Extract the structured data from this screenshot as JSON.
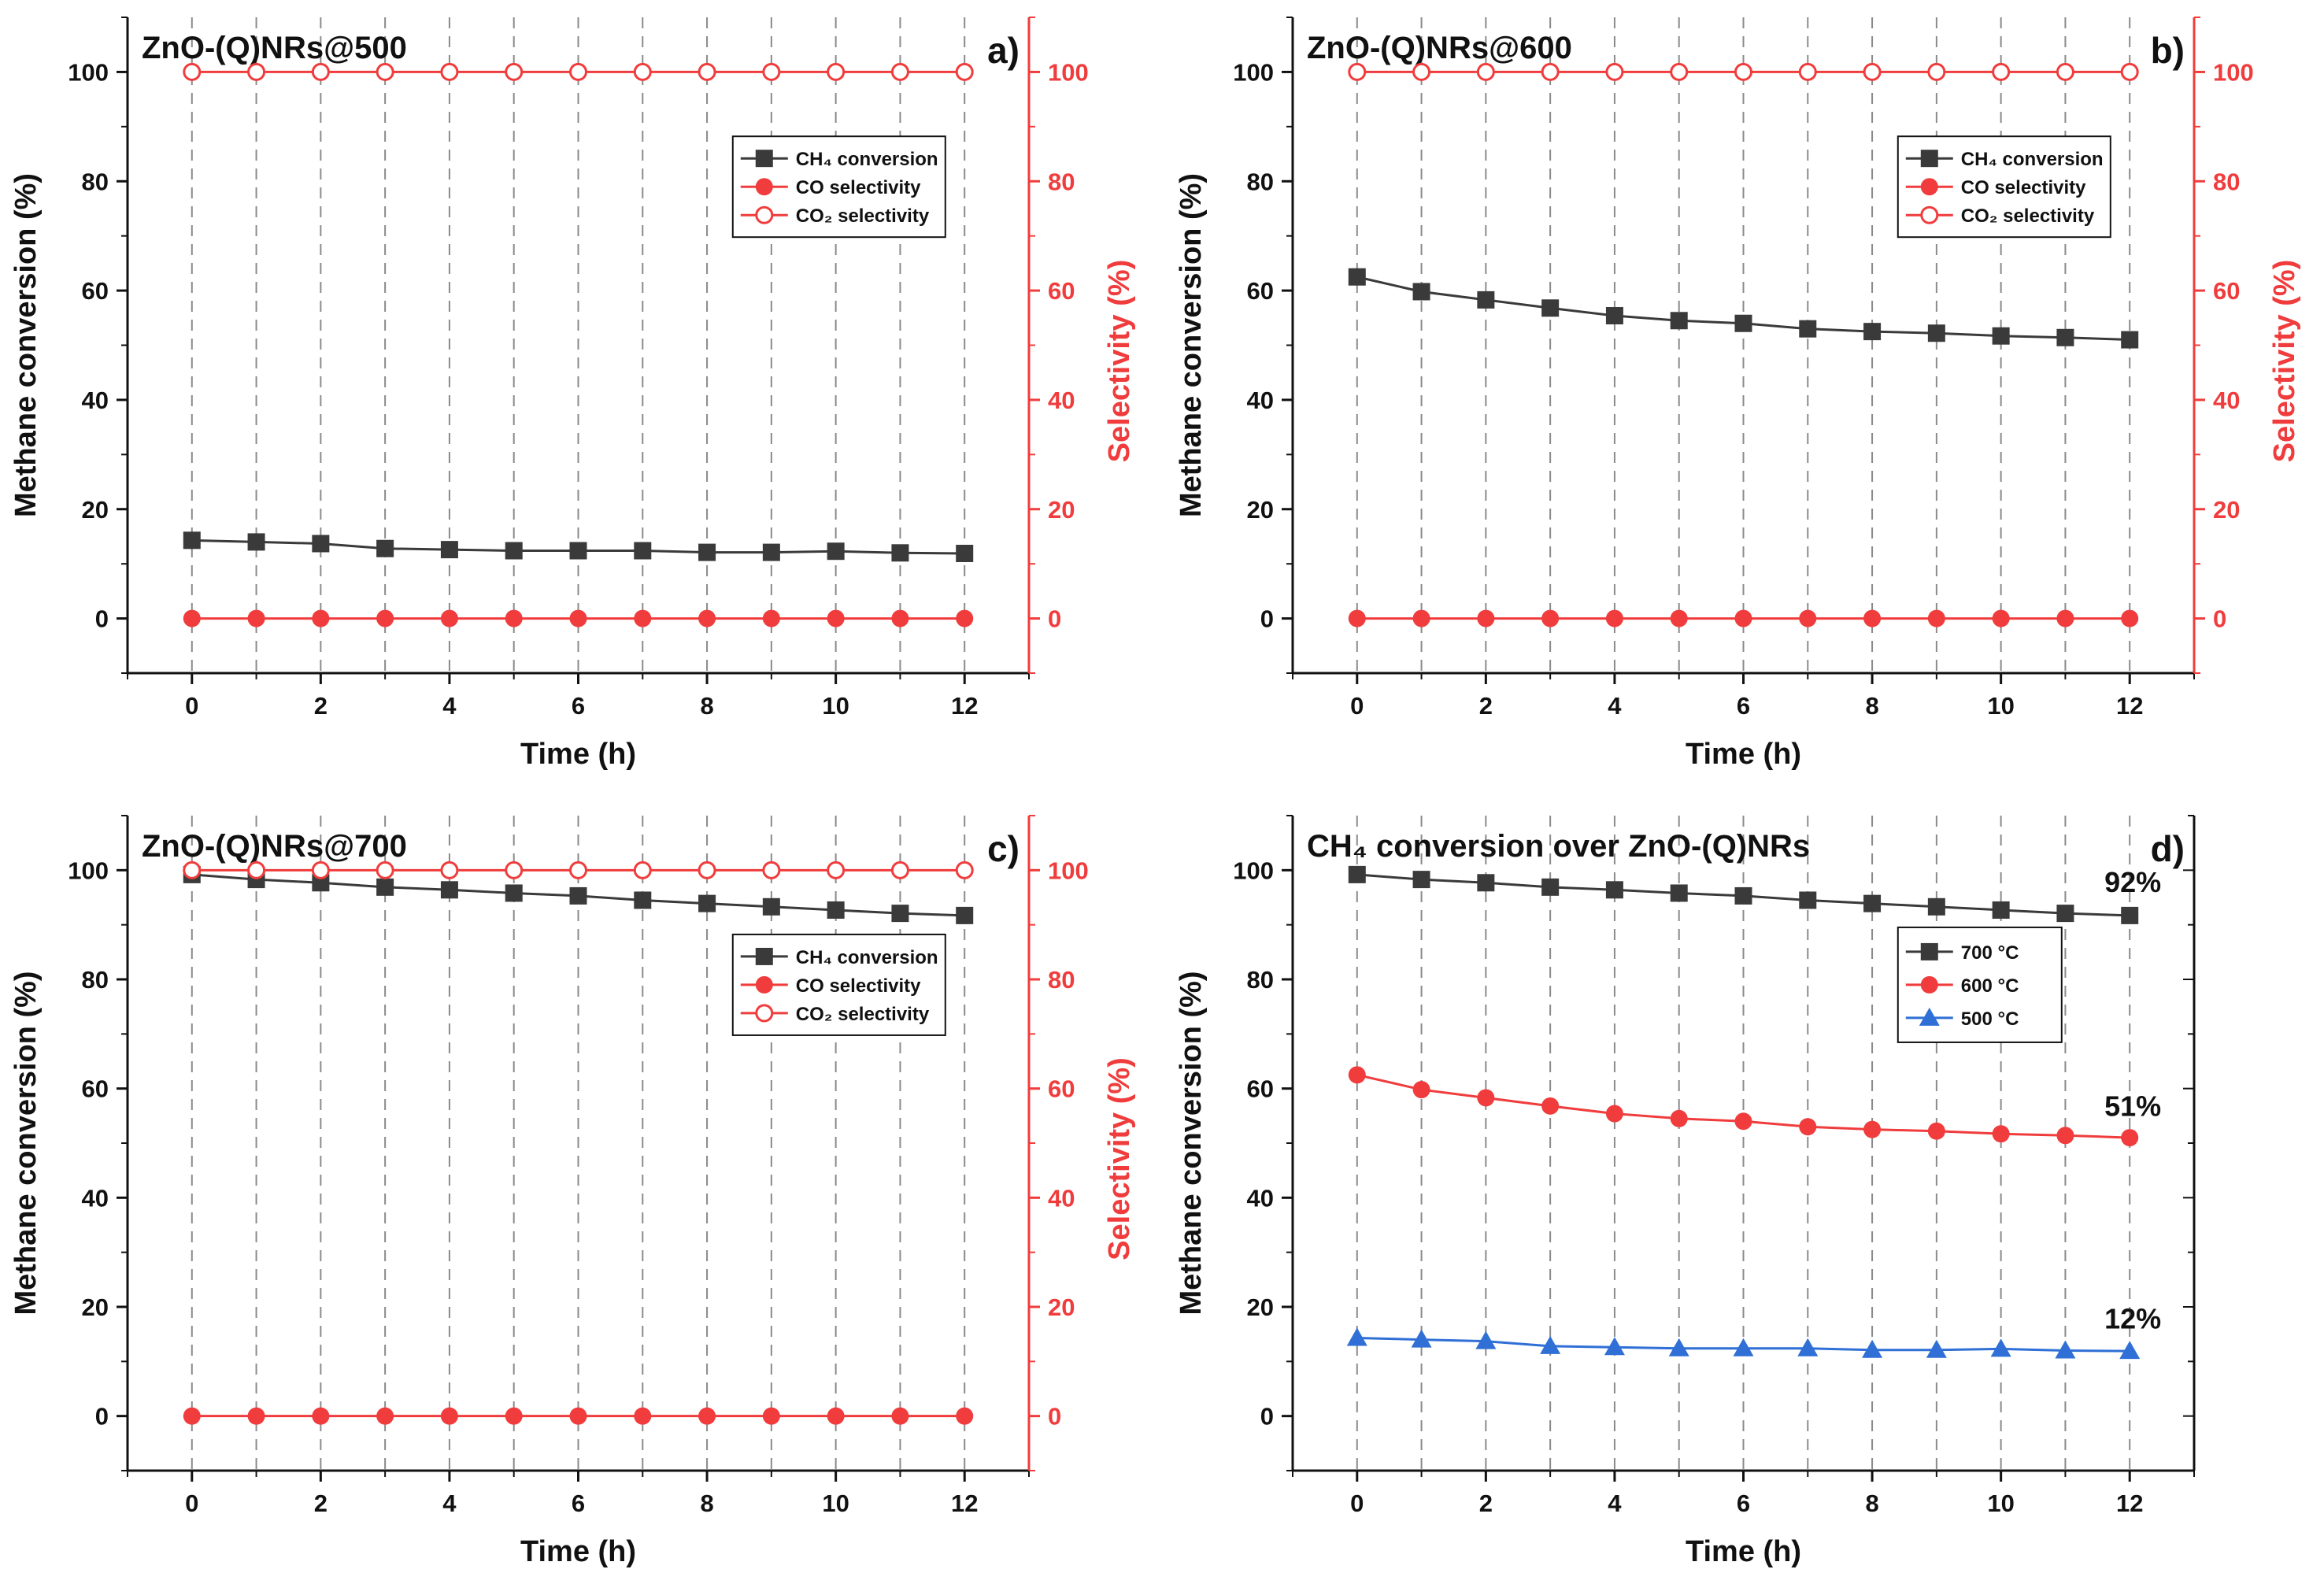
{
  "colors": {
    "black_series": "#3a3a3a",
    "red_series": "#f03c3c",
    "blue_series": "#2f6fd6",
    "right_axis": "#f03c3c",
    "grid": "#8a8a8a"
  },
  "chart_data": [
    {
      "id": "a",
      "type": "line",
      "panel_label": "a)",
      "title": "ZnO-(Q)NRs@500",
      "xlabel": "Time (h)",
      "ylabel": "Methane conversion (%)",
      "y2label": "Selectivity (%)",
      "xlim": [
        -1,
        13
      ],
      "ylim": [
        -10,
        110
      ],
      "xticks": [
        "0",
        "2",
        "4",
        "6",
        "8",
        "10",
        "12"
      ],
      "yticks": [
        "0",
        "20",
        "40",
        "60",
        "80",
        "100"
      ],
      "y2ticks": [
        "0",
        "20",
        "40",
        "60",
        "80",
        "100"
      ],
      "x": [
        0,
        1,
        2,
        3,
        4,
        5,
        6,
        7,
        8,
        9,
        10,
        11,
        12
      ],
      "legend_position": "center-right",
      "series": [
        {
          "name": "CH₄ conversion",
          "marker": "square",
          "color": "black_series",
          "axis": "left",
          "values": [
            14.3,
            14.0,
            13.7,
            12.8,
            12.6,
            12.4,
            12.4,
            12.4,
            12.1,
            12.1,
            12.3,
            12.0,
            11.9
          ]
        },
        {
          "name": "CO selectivity",
          "marker": "circle",
          "color": "red_series",
          "axis": "right",
          "values": [
            0,
            0,
            0,
            0,
            0,
            0,
            0,
            0,
            0,
            0,
            0,
            0,
            0
          ]
        },
        {
          "name": "CO₂ selectivity",
          "marker": "circle-open",
          "color": "red_series",
          "axis": "right",
          "values": [
            100,
            100,
            100,
            100,
            100,
            100,
            100,
            100,
            100,
            100,
            100,
            100,
            100
          ]
        }
      ]
    },
    {
      "id": "b",
      "type": "line",
      "panel_label": "b)",
      "title": "ZnO-(Q)NRs@600",
      "xlabel": "Time (h)",
      "ylabel": "Methane conversion (%)",
      "y2label": "Selectivity (%)",
      "xlim": [
        -1,
        13
      ],
      "ylim": [
        -10,
        110
      ],
      "xticks": [
        "0",
        "2",
        "4",
        "6",
        "8",
        "10",
        "12"
      ],
      "yticks": [
        "0",
        "20",
        "40",
        "60",
        "80",
        "100"
      ],
      "y2ticks": [
        "0",
        "20",
        "40",
        "60",
        "80",
        "100"
      ],
      "x": [
        0,
        1,
        2,
        3,
        4,
        5,
        6,
        7,
        8,
        9,
        10,
        11,
        12
      ],
      "legend_position": "center-right",
      "series": [
        {
          "name": "CH₄ conversion",
          "marker": "square",
          "color": "black_series",
          "axis": "left",
          "values": [
            62.5,
            59.8,
            58.3,
            56.8,
            55.4,
            54.5,
            54.0,
            53.0,
            52.5,
            52.2,
            51.7,
            51.4,
            51.0
          ]
        },
        {
          "name": "CO selectivity",
          "marker": "circle",
          "color": "red_series",
          "axis": "right",
          "values": [
            0,
            0,
            0,
            0,
            0,
            0,
            0,
            0,
            0,
            0,
            0,
            0,
            0
          ]
        },
        {
          "name": "CO₂ selectivity",
          "marker": "circle-open",
          "color": "red_series",
          "axis": "right",
          "values": [
            100,
            100,
            100,
            100,
            100,
            100,
            100,
            100,
            100,
            100,
            100,
            100,
            100
          ]
        }
      ]
    },
    {
      "id": "c",
      "type": "line",
      "panel_label": "c)",
      "title": "ZnO-(Q)NRs@700",
      "xlabel": "Time (h)",
      "ylabel": "Methane conversion (%)",
      "y2label": "Selectivity (%)",
      "xlim": [
        -1,
        13
      ],
      "ylim": [
        -10,
        110
      ],
      "xticks": [
        "0",
        "2",
        "4",
        "6",
        "8",
        "10",
        "12"
      ],
      "yticks": [
        "0",
        "20",
        "40",
        "60",
        "80",
        "100"
      ],
      "y2ticks": [
        "0",
        "20",
        "40",
        "60",
        "80",
        "100"
      ],
      "x": [
        0,
        1,
        2,
        3,
        4,
        5,
        6,
        7,
        8,
        9,
        10,
        11,
        12
      ],
      "legend_position": "center-right",
      "series": [
        {
          "name": "CH₄ conversion",
          "marker": "square",
          "color": "black_series",
          "axis": "left",
          "values": [
            99.2,
            98.3,
            97.7,
            96.9,
            96.4,
            95.8,
            95.3,
            94.5,
            93.9,
            93.3,
            92.7,
            92.1,
            91.7
          ]
        },
        {
          "name": "CO selectivity",
          "marker": "circle",
          "color": "red_series",
          "axis": "right",
          "values": [
            0,
            0,
            0,
            0,
            0,
            0,
            0,
            0,
            0,
            0,
            0,
            0,
            0
          ]
        },
        {
          "name": "CO₂ selectivity",
          "marker": "circle-open",
          "color": "red_series",
          "axis": "right",
          "values": [
            100,
            100,
            100,
            100,
            100,
            100,
            100,
            100,
            100,
            100,
            100,
            100,
            100
          ]
        }
      ]
    },
    {
      "id": "d",
      "type": "line",
      "panel_label": "d)",
      "title": "CH₄ conversion over ZnO-(Q)NRs",
      "xlabel": "Time (h)",
      "ylabel": "Methane conversion (%)",
      "xlim": [
        -1,
        13
      ],
      "ylim": [
        -10,
        110
      ],
      "xticks": [
        "0",
        "2",
        "4",
        "6",
        "8",
        "10",
        "12"
      ],
      "yticks": [
        "0",
        "20",
        "40",
        "60",
        "80",
        "100"
      ],
      "x": [
        0,
        1,
        2,
        3,
        4,
        5,
        6,
        7,
        8,
        9,
        10,
        11,
        12
      ],
      "legend_position": "center-right",
      "annotations": [
        {
          "text": "92%",
          "x": 12,
          "y": 96
        },
        {
          "text": "51%",
          "x": 12,
          "y": 55
        },
        {
          "text": "12%",
          "x": 12,
          "y": 16
        }
      ],
      "series": [
        {
          "name": "700 °C",
          "marker": "square",
          "color": "black_series",
          "axis": "left",
          "values": [
            99.2,
            98.3,
            97.7,
            96.9,
            96.4,
            95.8,
            95.3,
            94.5,
            93.9,
            93.3,
            92.7,
            92.1,
            91.7
          ]
        },
        {
          "name": "600 °C",
          "marker": "circle",
          "color": "red_series",
          "axis": "left",
          "values": [
            62.5,
            59.8,
            58.3,
            56.8,
            55.4,
            54.5,
            54.0,
            53.0,
            52.5,
            52.2,
            51.7,
            51.4,
            51.0
          ]
        },
        {
          "name": "500 °C",
          "marker": "triangle",
          "color": "blue_series",
          "axis": "left",
          "values": [
            14.3,
            14.0,
            13.7,
            12.8,
            12.6,
            12.4,
            12.4,
            12.4,
            12.1,
            12.1,
            12.3,
            12.0,
            11.9
          ]
        }
      ]
    }
  ]
}
